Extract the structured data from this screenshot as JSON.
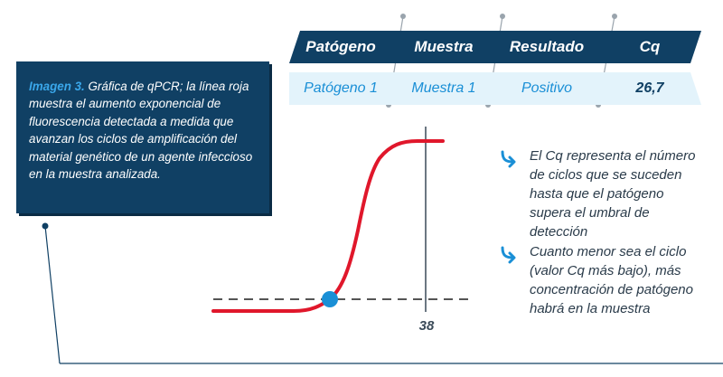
{
  "caption": {
    "title": "Imagen 3.",
    "text": "Gráfica de qPCR; la línea roja muestra el aumento exponencial de fluorescencia detectada a medida que avanzan los ciclos de amplificación del material genético de un agente infeccioso en la muestra analizada."
  },
  "table": {
    "headers": [
      "Patógeno",
      "Muestra",
      "Resultado",
      "Cq"
    ],
    "row": [
      "Patógeno 1",
      "Muestra 1",
      "Positivo",
      "26,7"
    ]
  },
  "bullets": [
    "El Cq representa el número de ciclos que se suceden hasta que el patógeno supera el umbral de detección",
    "Cuanto menor sea el ciclo (valor Cq más bajo), más concentración de patógeno habrá en la muestra"
  ],
  "graph": {
    "cycle_label": "38"
  },
  "colors": {
    "navy": "#104064",
    "accent_blue": "#1a8fd6",
    "curve_red": "#e0172b",
    "light_row": "#e3f3fb"
  },
  "icons": [
    "arrow-curve-icon",
    "threshold-point-icon"
  ]
}
